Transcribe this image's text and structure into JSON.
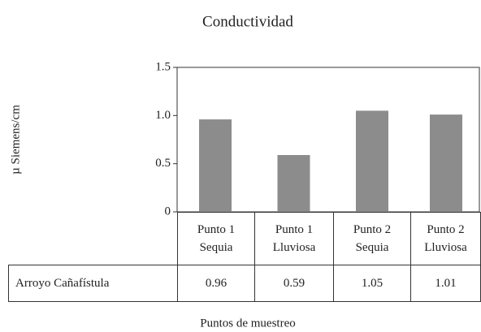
{
  "chart_data": {
    "type": "bar",
    "title": "Conductividad",
    "y_label": "µ Siemens/cm",
    "x_label": "Puntos de muestreo",
    "categories": [
      "Punto 1 Sequia",
      "Punto 1 Lluviosa",
      "Punto 2 Sequia",
      "Punto 2 Lluviosa"
    ],
    "series": [
      {
        "name": "Arroyo Cañafístula",
        "color": "#8c8c8c",
        "values": [
          0.96,
          0.59,
          1.05,
          1.01
        ]
      }
    ],
    "ylim": [
      0,
      1.5
    ],
    "yticks": [
      0,
      0.5,
      {
        "value": 1,
        "label": "1.0"
      },
      1.5
    ]
  }
}
